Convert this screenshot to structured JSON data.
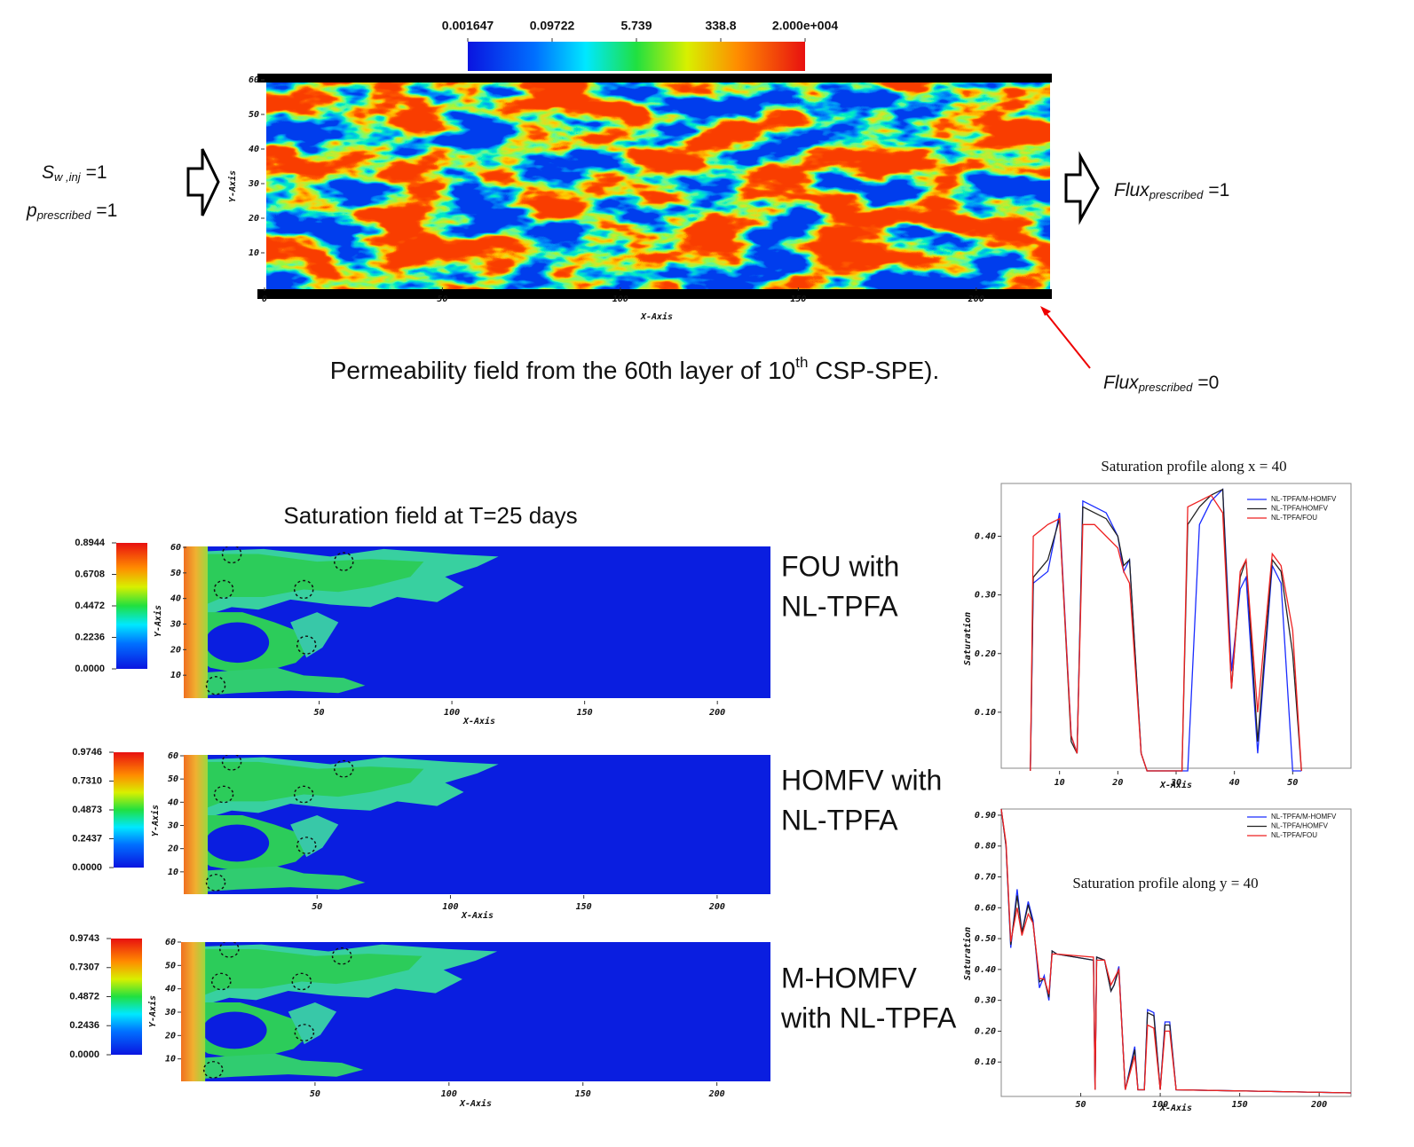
{
  "chart_data": [
    {
      "type": "heatmap",
      "xlabel": "X-Axis",
      "ylabel": "Y-Axis",
      "xlim": [
        0,
        220
      ],
      "ylim": [
        0,
        60
      ],
      "xticks": [
        0,
        50,
        100,
        150,
        200
      ],
      "yticks": [
        10,
        20,
        30,
        40,
        50,
        60
      ],
      "colorbar_scale": "log",
      "colorbar_orientation": "horizontal",
      "clim": [
        0.001647,
        20000
      ],
      "colorbar_ticks": [
        0.001647,
        0.09722,
        5.739,
        338.8,
        {
          "value": 20000,
          "label": "2.000e+004"
        }
      ],
      "caption": {
        "before": "Permeability field from the  60th layer of 10",
        "sup": "th",
        "after": " CSP-SPE)."
      },
      "annotations": [
        {
          "base": "S",
          "sub": "w ,inj",
          "rest": "=1"
        },
        {
          "base": "p",
          "sub": "prescribed",
          "rest": "=1"
        },
        {
          "base": "Flux",
          "sub": "prescribed",
          "rest": "=1"
        },
        {
          "base": "Flux",
          "sub": "prescribed",
          "rest": "=0"
        }
      ]
    },
    {
      "type": "heatmap",
      "title": "Saturation field at T=25 days",
      "label_lines": [
        "FOU with",
        "NL-TPFA"
      ],
      "xlabel": "X-Axis",
      "ylabel": "Y-Axis",
      "xlim": [
        0,
        220
      ],
      "ylim": [
        0,
        60
      ],
      "xticks": [
        50,
        100,
        150,
        200
      ],
      "yticks": [
        10,
        20,
        30,
        40,
        50,
        60
      ],
      "colorbar_scale": "linear",
      "colorbar_orientation": "vertical",
      "clim": [
        0,
        0.8944
      ],
      "colorbar_ticks": [
        0.8944,
        0.6708,
        0.4472,
        0.2236,
        {
          "value": 0,
          "label": "0.0000"
        }
      ]
    },
    {
      "type": "heatmap",
      "label_lines": [
        "HOMFV with",
        "NL-TPFA"
      ],
      "xlabel": "X-Axis",
      "ylabel": "Y-Axis",
      "xlim": [
        0,
        220
      ],
      "ylim": [
        0,
        60
      ],
      "xticks": [
        50,
        100,
        150,
        200
      ],
      "yticks": [
        10,
        20,
        30,
        40,
        50,
        60
      ],
      "colorbar_scale": "linear",
      "colorbar_orientation": "vertical",
      "clim": [
        0,
        0.9746
      ],
      "colorbar_ticks": [
        0.9746,
        {
          "value": 0.731,
          "label": "0.7310"
        },
        0.4873,
        0.2437,
        {
          "value": 0,
          "label": "0.0000"
        }
      ]
    },
    {
      "type": "heatmap",
      "label_lines": [
        "M-HOMFV",
        "with NL-TPFA"
      ],
      "xlabel": "X-Axis",
      "ylabel": "Y-Axis",
      "xlim": [
        0,
        220
      ],
      "ylim": [
        0,
        60
      ],
      "xticks": [
        50,
        100,
        150,
        200
      ],
      "yticks": [
        10,
        20,
        30,
        40,
        50,
        60
      ],
      "colorbar_scale": "linear",
      "colorbar_orientation": "vertical",
      "clim": [
        0,
        0.9743
      ],
      "colorbar_ticks": [
        0.9743,
        0.7307,
        0.4872,
        0.2436,
        {
          "value": 0,
          "label": "0.0000"
        }
      ]
    },
    {
      "type": "line",
      "title": "Saturation profile along x = 40",
      "xlabel": "X-Axis",
      "ylabel": "Saturation",
      "xlim": [
        0,
        60
      ],
      "ylim": [
        0,
        0.49
      ],
      "xticks": [
        10,
        20,
        30,
        40,
        50
      ],
      "yticks": [
        {
          "value": 0.1,
          "label": "0.10"
        },
        {
          "value": 0.2,
          "label": "0.20"
        },
        {
          "value": 0.3,
          "label": "0.30"
        },
        {
          "value": 0.4,
          "label": "0.40"
        }
      ],
      "x": [
        5,
        5.5,
        8,
        10,
        12,
        13,
        14,
        16,
        18,
        20,
        21,
        22,
        24,
        25,
        31,
        32,
        34,
        36,
        38,
        39.5,
        41,
        42,
        44,
        46.5,
        48,
        50,
        51.5
      ],
      "series": [
        {
          "name": "NL-TPFA/M-HOMFV",
          "color": "#1a2cff",
          "values": [
            0,
            0.32,
            0.34,
            0.44,
            0.06,
            0.03,
            0.46,
            0.45,
            0.44,
            0.4,
            0.34,
            0.36,
            0.03,
            0,
            0,
            0,
            0.42,
            0.46,
            0.48,
            0.17,
            0.31,
            0.33,
            0.03,
            0.35,
            0.32,
            0,
            0
          ]
        },
        {
          "name": "NL-TPFA/HOMFV",
          "color": "#222222",
          "values": [
            0,
            0.33,
            0.36,
            0.43,
            0.05,
            0.03,
            0.45,
            0.44,
            0.43,
            0.4,
            0.35,
            0.36,
            0.03,
            0,
            0,
            0.42,
            0.45,
            0.47,
            0.48,
            0.14,
            0.33,
            0.36,
            0.05,
            0.36,
            0.34,
            0.2,
            0
          ]
        },
        {
          "name": "NL-TPFA/FOU",
          "color": "#ee2222",
          "values": [
            0,
            0.4,
            0.42,
            0.43,
            0.06,
            0.03,
            0.42,
            0.42,
            0.4,
            0.38,
            0.34,
            0.32,
            0.03,
            0,
            0,
            0.45,
            0.46,
            0.47,
            0.44,
            0.14,
            0.34,
            0.36,
            0.1,
            0.37,
            0.35,
            0.24,
            0
          ]
        }
      ]
    },
    {
      "type": "line",
      "title": "Saturation profile along y = 40",
      "xlabel": "X-Axis",
      "ylabel": "Saturation",
      "xlim": [
        0,
        220
      ],
      "ylim": [
        0,
        0.92
      ],
      "xticks": [
        50,
        100,
        150,
        200
      ],
      "yticks": [
        {
          "value": 0.1,
          "label": "0.10"
        },
        {
          "value": 0.2,
          "label": "0.20"
        },
        {
          "value": 0.3,
          "label": "0.30"
        },
        {
          "value": 0.4,
          "label": "0.40"
        },
        {
          "value": 0.5,
          "label": "0.50"
        },
        {
          "value": 0.6,
          "label": "0.60"
        },
        {
          "value": 0.7,
          "label": "0.70"
        },
        {
          "value": 0.8,
          "label": "0.80"
        },
        {
          "value": 0.9,
          "label": "0.90"
        }
      ],
      "x": [
        0,
        3,
        6,
        10,
        13,
        17,
        20,
        24,
        27,
        30,
        32,
        35,
        58,
        59,
        60,
        65,
        69,
        71,
        74,
        78,
        84,
        86,
        90,
        92,
        96,
        100,
        103,
        106,
        110,
        220
      ],
      "series": [
        {
          "name": "NL-TPFA/M-HOMFV",
          "color": "#1a2cff",
          "values": [
            0.92,
            0.8,
            0.47,
            0.66,
            0.52,
            0.62,
            0.56,
            0.34,
            0.38,
            0.3,
            0.46,
            0.45,
            0.43,
            0.01,
            0.44,
            0.43,
            0.33,
            0.35,
            0.41,
            0.01,
            0.15,
            0.01,
            0.01,
            0.27,
            0.26,
            0.01,
            0.23,
            0.23,
            0.01,
            0
          ]
        },
        {
          "name": "NL-TPFA/HOMFV",
          "color": "#222222",
          "values": [
            0.92,
            0.8,
            0.48,
            0.64,
            0.52,
            0.61,
            0.55,
            0.36,
            0.37,
            0.31,
            0.46,
            0.45,
            0.43,
            0.01,
            0.44,
            0.43,
            0.33,
            0.35,
            0.4,
            0.01,
            0.14,
            0.01,
            0.01,
            0.26,
            0.25,
            0.01,
            0.22,
            0.22,
            0.01,
            0
          ]
        },
        {
          "name": "NL-TPFA/FOU",
          "color": "#ee2222",
          "values": [
            0.92,
            0.81,
            0.49,
            0.6,
            0.51,
            0.58,
            0.55,
            0.37,
            0.37,
            0.32,
            0.45,
            0.45,
            0.44,
            0.01,
            0.43,
            0.43,
            0.35,
            0.37,
            0.4,
            0.01,
            0.12,
            0.01,
            0.01,
            0.22,
            0.21,
            0.01,
            0.2,
            0.2,
            0.01,
            0
          ]
        }
      ]
    }
  ]
}
